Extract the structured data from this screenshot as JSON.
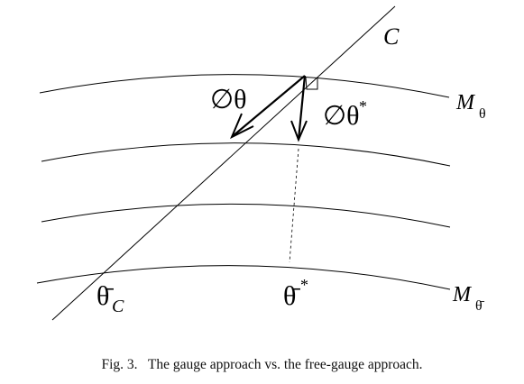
{
  "diagram": {
    "labels": {
      "curve": "C",
      "manifold_top": "M",
      "manifold_top_sub": "θ",
      "manifold_bottom": "M",
      "manifold_bottom_sub": "θ̄",
      "gauge_step": "∅θ",
      "free_step": "∅θ",
      "free_step_sup": "*",
      "theta_bar_c": "θ̄",
      "theta_bar_c_sub": "C",
      "theta_bar_star": "θ̄",
      "theta_bar_star_sup": "*"
    }
  },
  "caption": {
    "text": "Fig. 3.   The gauge approach vs. the free-gauge approach."
  }
}
